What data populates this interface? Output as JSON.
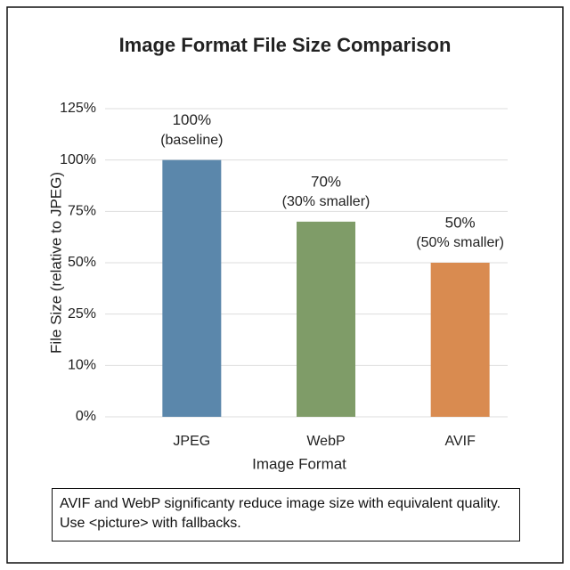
{
  "chart_data": {
    "type": "bar",
    "title": "Image Format File Size Comparison",
    "x_label": "Image Format",
    "y_label": "File Size (relative to JPEG)",
    "categories": [
      "JPEG",
      "WebP",
      "AVIF"
    ],
    "values": [
      100,
      70,
      50
    ],
    "value_labels": [
      "100%",
      "70%",
      "50%"
    ],
    "value_notes": [
      "(baseline)",
      "(30% smaller)",
      "(50% smaller)"
    ],
    "colors": [
      "#5b87ab",
      "#7f9c68",
      "#d98b50"
    ],
    "ylim": [
      0,
      125
    ],
    "yticks": [
      {
        "value": 0,
        "label": "0%"
      },
      {
        "value": 10,
        "label": "10%"
      },
      {
        "value": 25,
        "label": "25%"
      },
      {
        "value": 50,
        "label": "50%"
      },
      {
        "value": 75,
        "label": "75%"
      },
      {
        "value": 100,
        "label": "100%"
      },
      {
        "value": 125,
        "label": "125%"
      }
    ],
    "grid": true,
    "note": "AVIF and WebP significanty reduce image size with equivalent quality. Use <picture> with fallbacks."
  }
}
